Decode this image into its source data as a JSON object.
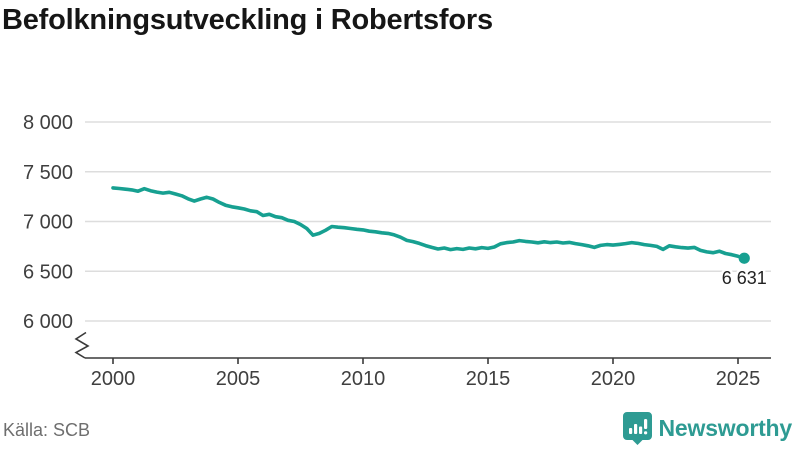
{
  "title": "Befolkningsutveckling i Robertsfors",
  "source": "Källa: SCB",
  "branding": {
    "name": "Newsworthy",
    "color": "#2E9B93"
  },
  "chart_data": {
    "type": "line",
    "title": "Befolkningsutveckling i Robertsfors",
    "series_name": "Befolkning",
    "x_start": 2000,
    "x_step": 0.25,
    "x_end": 2025.25,
    "values": [
      7338,
      7332,
      7325,
      7318,
      7305,
      7330,
      7310,
      7295,
      7285,
      7293,
      7276,
      7258,
      7228,
      7205,
      7226,
      7243,
      7226,
      7192,
      7164,
      7148,
      7138,
      7126,
      7108,
      7098,
      7060,
      7072,
      7048,
      7038,
      7012,
      7000,
      6970,
      6930,
      6862,
      6880,
      6912,
      6950,
      6943,
      6938,
      6930,
      6922,
      6916,
      6903,
      6896,
      6886,
      6880,
      6865,
      6842,
      6810,
      6798,
      6780,
      6758,
      6740,
      6724,
      6734,
      6718,
      6728,
      6720,
      6734,
      6726,
      6738,
      6730,
      6744,
      6776,
      6788,
      6794,
      6808,
      6800,
      6794,
      6786,
      6796,
      6788,
      6794,
      6784,
      6790,
      6778,
      6768,
      6756,
      6740,
      6760,
      6768,
      6763,
      6770,
      6778,
      6788,
      6780,
      6768,
      6760,
      6750,
      6720,
      6756,
      6746,
      6738,
      6733,
      6740,
      6710,
      6694,
      6686,
      6702,
      6678,
      6666,
      6650,
      6631
    ],
    "last_value": 6631,
    "end_label": "6 631",
    "y_ticks": [
      8000,
      7500,
      7000,
      6500,
      6000
    ],
    "y_tick_labels": [
      "8 000",
      "7 500",
      "7 000",
      "6 500",
      "6 000"
    ],
    "x_ticks": [
      2000,
      2005,
      2010,
      2015,
      2020,
      2025
    ],
    "x_tick_labels": [
      "2000",
      "2005",
      "2010",
      "2015",
      "2020",
      "2025"
    ],
    "ylim": [
      6000,
      8000
    ],
    "y_axis_break": true,
    "grid": true,
    "line_color": "#17A091",
    "grid_color": "#dddddd",
    "axis_color": "#3a3a3a",
    "tick_label_color": "#3f3f3f",
    "end_label_color": "#222222"
  }
}
